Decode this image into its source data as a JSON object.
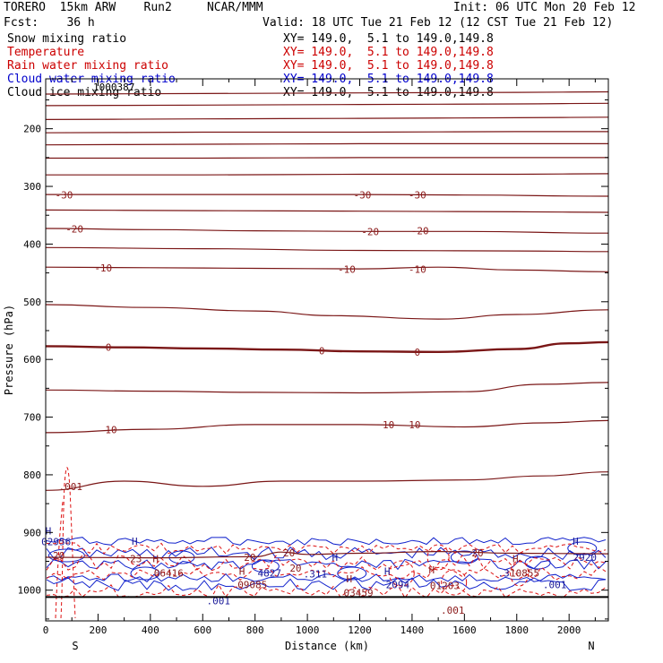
{
  "header": {
    "title_line": "TORERO  15km ARW    Run2     NCAR/MMM",
    "fcst_line": "Fcst:    36 h",
    "init_line": "Init: 06 UTC Mon 20 Feb 12",
    "valid_line": "Valid: 18 UTC Tue 21 Feb 12 (12 CST Tue 21 Feb 12)"
  },
  "fields": [
    {
      "label": "Snow mixing ratio",
      "xy": "XY= 149.0,  5.1 to 149.0,149.8",
      "color": "#000000"
    },
    {
      "label": "Temperature",
      "xy": "XY= 149.0,  5.1 to 149.0,149.8",
      "color": "#cc0000"
    },
    {
      "label": "Rain water mixing ratio",
      "xy": "XY= 149.0,  5.1 to 149.0,149.8",
      "color": "#cc0000"
    },
    {
      "label": "Cloud water mixing ratio",
      "xy": "XY= 149.0,  5.1 to 149.0,149.8",
      "color": "#0000cc"
    },
    {
      "label": "Cloud ice mixing ratio",
      "xy": "XY= 149.0,  5.1 to 149.0,149.8",
      "color": "#000000"
    }
  ],
  "colors": {
    "temperature": "#7a1616",
    "rain": "#dd1111",
    "cloud_water": "#1122cc",
    "label_red": "#8b1a1a",
    "label_blue": "#1a1a99",
    "axis": "#000000"
  },
  "chart_data": {
    "type": "contour",
    "xlabel": "Distance (km)",
    "ylabel": "Pressure (hPa)",
    "xlim": [
      0,
      2150
    ],
    "ylim": [
      1050,
      120
    ],
    "x_ticks": [
      0,
      200,
      400,
      600,
      800,
      1000,
      1200,
      1400,
      1600,
      1800,
      2000
    ],
    "y_ticks": [
      200,
      300,
      400,
      500,
      600,
      700,
      800,
      900,
      1000
    ],
    "endpoint_labels": {
      "left": "S",
      "right": "N"
    },
    "top_annotation": "1000387",
    "temperature_contours": [
      {
        "level": -65,
        "points": [
          [
            0,
            140
          ],
          [
            600,
            139
          ],
          [
            1200,
            138
          ],
          [
            1800,
            137
          ],
          [
            2150,
            136
          ]
        ]
      },
      {
        "level": -60,
        "points": [
          [
            0,
            160
          ],
          [
            600,
            159
          ],
          [
            1200,
            158
          ],
          [
            1800,
            157
          ],
          [
            2150,
            156
          ]
        ]
      },
      {
        "level": -55,
        "points": [
          [
            0,
            184
          ],
          [
            600,
            183
          ],
          [
            1200,
            182
          ],
          [
            1800,
            181
          ],
          [
            2150,
            180
          ]
        ]
      },
      {
        "level": -50,
        "points": [
          [
            0,
            207
          ],
          [
            600,
            206
          ],
          [
            1200,
            206
          ],
          [
            1800,
            205
          ],
          [
            2150,
            205
          ]
        ]
      },
      {
        "level": -45,
        "points": [
          [
            0,
            228
          ],
          [
            600,
            227
          ],
          [
            1200,
            226
          ],
          [
            1800,
            226
          ],
          [
            2150,
            226
          ]
        ]
      },
      {
        "level": -40,
        "points": [
          [
            0,
            251
          ],
          [
            600,
            251
          ],
          [
            1200,
            250
          ],
          [
            1800,
            250
          ],
          [
            2150,
            250
          ]
        ]
      },
      {
        "level": -35,
        "points": [
          [
            0,
            280
          ],
          [
            600,
            280
          ],
          [
            1200,
            279
          ],
          [
            1800,
            279
          ],
          [
            2150,
            278
          ]
        ]
      },
      {
        "level": -30,
        "points": [
          [
            0,
            314
          ],
          [
            400,
            314
          ],
          [
            800,
            314
          ],
          [
            1200,
            314
          ],
          [
            1600,
            315
          ],
          [
            2150,
            317
          ]
        ]
      },
      {
        "level": -25,
        "points": [
          [
            0,
            341
          ],
          [
            600,
            342
          ],
          [
            1200,
            343
          ],
          [
            1800,
            344
          ],
          [
            2150,
            345
          ]
        ]
      },
      {
        "level": -20,
        "points": [
          [
            0,
            373
          ],
          [
            400,
            375
          ],
          [
            800,
            377
          ],
          [
            1200,
            378
          ],
          [
            1600,
            378
          ],
          [
            2150,
            381
          ]
        ]
      },
      {
        "level": -15,
        "points": [
          [
            0,
            406
          ],
          [
            600,
            408
          ],
          [
            1200,
            411
          ],
          [
            1800,
            412
          ],
          [
            2150,
            413
          ]
        ]
      },
      {
        "level": -10,
        "points": [
          [
            0,
            440
          ],
          [
            400,
            441
          ],
          [
            800,
            442
          ],
          [
            1200,
            443
          ],
          [
            1500,
            440
          ],
          [
            1800,
            445
          ],
          [
            2150,
            448
          ]
        ]
      },
      {
        "level": -5,
        "points": [
          [
            0,
            505
          ],
          [
            400,
            510
          ],
          [
            800,
            516
          ],
          [
            1100,
            524
          ],
          [
            1500,
            530
          ],
          [
            1800,
            522
          ],
          [
            2150,
            514
          ]
        ]
      },
      {
        "level": 0,
        "points": [
          [
            0,
            577
          ],
          [
            300,
            579
          ],
          [
            600,
            581
          ],
          [
            900,
            583
          ],
          [
            1200,
            586
          ],
          [
            1500,
            587
          ],
          [
            1800,
            582
          ],
          [
            2000,
            572
          ],
          [
            2150,
            570
          ]
        ]
      },
      {
        "level": 5,
        "points": [
          [
            0,
            653
          ],
          [
            400,
            655
          ],
          [
            800,
            657
          ],
          [
            1200,
            658
          ],
          [
            1600,
            656
          ],
          [
            1900,
            643
          ],
          [
            2150,
            640
          ]
        ]
      },
      {
        "level": 10,
        "points": [
          [
            0,
            727
          ],
          [
            400,
            721
          ],
          [
            800,
            713
          ],
          [
            1200,
            713
          ],
          [
            1600,
            717
          ],
          [
            1900,
            710
          ],
          [
            2150,
            706
          ]
        ]
      },
      {
        "level": 15,
        "points": [
          [
            0,
            827
          ],
          [
            300,
            811
          ],
          [
            600,
            820
          ],
          [
            900,
            811
          ],
          [
            1200,
            811
          ],
          [
            1600,
            809
          ],
          [
            1900,
            802
          ],
          [
            2150,
            795
          ]
        ]
      },
      {
        "level": 20,
        "points": [
          [
            0,
            943
          ],
          [
            400,
            944
          ],
          [
            800,
            942
          ],
          [
            900,
            934
          ],
          [
            1000,
            938
          ],
          [
            1200,
            936
          ],
          [
            1500,
            933
          ],
          [
            1800,
            936
          ],
          [
            2150,
            937
          ]
        ]
      }
    ],
    "contour_labels": [
      {
        "text": "-30",
        "x": 70,
        "y": 315
      },
      {
        "text": "-30",
        "x": 1210,
        "y": 315
      },
      {
        "text": "-30",
        "x": 1420,
        "y": 315
      },
      {
        "text": "-20",
        "x": 110,
        "y": 374
      },
      {
        "text": "-20",
        "x": 1240,
        "y": 378
      },
      {
        "text": "-20",
        "x": 1430,
        "y": 377
      },
      {
        "text": "-10",
        "x": 220,
        "y": 441
      },
      {
        "text": "-10",
        "x": 1150,
        "y": 444
      },
      {
        "text": "-10",
        "x": 1420,
        "y": 444
      },
      {
        "text": "0",
        "x": 240,
        "y": 579
      },
      {
        "text": "0",
        "x": 1055,
        "y": 585
      },
      {
        "text": "0",
        "x": 1420,
        "y": 587
      },
      {
        "text": "10",
        "x": 250,
        "y": 722
      },
      {
        "text": "10",
        "x": 1310,
        "y": 713
      },
      {
        "text": "10",
        "x": 1410,
        "y": 713
      },
      {
        "text": "20",
        "x": 780,
        "y": 943
      },
      {
        "text": "20",
        "x": 930,
        "y": 935
      },
      {
        "text": "20",
        "x": 1650,
        "y": 935
      }
    ],
    "near_surface_labels": [
      {
        "text": "H",
        "x": 10,
        "y": 897,
        "color": "label_blue"
      },
      {
        "text": "02956",
        "x": 40,
        "y": 916,
        "color": "label_blue"
      },
      {
        "text": "20",
        "x": 50,
        "y": 940,
        "color": "label_red"
      },
      {
        "text": "H",
        "x": 340,
        "y": 915,
        "color": "label_blue"
      },
      {
        "text": "23",
        "x": 345,
        "y": 945,
        "color": "label_red"
      },
      {
        "text": "H",
        "x": 420,
        "y": 945,
        "color": "label_red"
      },
      {
        "text": "06416",
        "x": 470,
        "y": 970,
        "color": "label_red"
      },
      {
        "text": "H",
        "x": 750,
        "y": 967,
        "color": "label_red"
      },
      {
        "text": "09085",
        "x": 790,
        "y": 990,
        "color": "label_red"
      },
      {
        "text": "4827",
        "x": 855,
        "y": 970,
        "color": "label_blue"
      },
      {
        "text": "20",
        "x": 955,
        "y": 962,
        "color": "label_red"
      },
      {
        "text": ".311",
        "x": 1030,
        "y": 972,
        "color": "label_blue"
      },
      {
        "text": "H",
        "x": 1105,
        "y": 943,
        "color": "label_blue"
      },
      {
        "text": ".001",
        "x": 660,
        "y": 1018,
        "color": "label_blue"
      },
      {
        "text": "H",
        "x": 1160,
        "y": 980,
        "color": "label_red"
      },
      {
        "text": "03459",
        "x": 1195,
        "y": 1004,
        "color": "label_red"
      },
      {
        "text": "H",
        "x": 1305,
        "y": 967,
        "color": "label_blue"
      },
      {
        "text": "2094",
        "x": 1345,
        "y": 990,
        "color": "label_blue"
      },
      {
        "text": "H",
        "x": 1475,
        "y": 965,
        "color": "label_red"
      },
      {
        "text": "01203",
        "x": 1525,
        "y": 992,
        "color": "label_red"
      },
      {
        "text": ".001",
        "x": 1555,
        "y": 1035,
        "color": "label_red"
      },
      {
        "text": "H",
        "x": 1795,
        "y": 945,
        "color": "label_red"
      },
      {
        "text": ".3",
        "x": 1750,
        "y": 970,
        "color": "label_blue"
      },
      {
        "text": "10855",
        "x": 1830,
        "y": 970,
        "color": "label_red"
      },
      {
        "text": "H",
        "x": 2025,
        "y": 915,
        "color": "label_blue"
      },
      {
        "text": "2920",
        "x": 2060,
        "y": 943,
        "color": "label_blue"
      },
      {
        "text": ".001",
        "x": 1945,
        "y": 990,
        "color": "label_blue"
      },
      {
        "text": ".001",
        "x": 95,
        "y": 820,
        "color": "label_red"
      }
    ],
    "surface_line": {
      "level": 1012
    }
  }
}
